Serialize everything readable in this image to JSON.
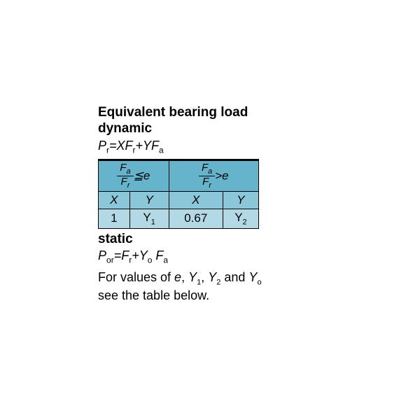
{
  "title_line1": "Equivalent bearing load",
  "title_line2": "dynamic",
  "dynamic_formula_html": "P<span class='sub'>r</span>=XF<span class='sub'>r</span>+YF<span class='sub'>a</span>",
  "table": {
    "header_left_html": "<span class='frac'><span class='num'>F<span class='small-sub'>a</span></span><span class='den'>F<span class='small-sub'>r</span></span></span><span class='op'>≦e</span>",
    "header_right_html": "<span class='frac'><span class='num'>F<span class='small-sub'>a</span></span><span class='den'>F<span class='small-sub'>r</span></span></span><span class='op'>>e</span>",
    "subheaders": [
      "X",
      "Y",
      "X",
      "Y"
    ],
    "values_html": [
      "1",
      "Y<span class='small-sub'>1</span>",
      "0.67",
      "Y<span class='small-sub'>2</span>"
    ],
    "colors": {
      "header_bg": "#66b3cc",
      "subheader_bg": "#8cc6d9",
      "value_bg": "#b3d9e6",
      "border": "#000000"
    }
  },
  "static_label": "static",
  "static_formula_html": "P<span class='sub'>or</span>=F<span class='sub'>r</span>+Y<span class='sub'>o</span> F<span class='sub'>a</span>",
  "footer_html": "For values of <span class='ital'>e</span>, <span class='ital'>Y</span><span class='small-sub'>1</span>, <span class='ital'>Y</span><span class='small-sub'>2</span> and <span class='ital'>Y</span><span class='small-sub'>o</span><br>see the table below."
}
